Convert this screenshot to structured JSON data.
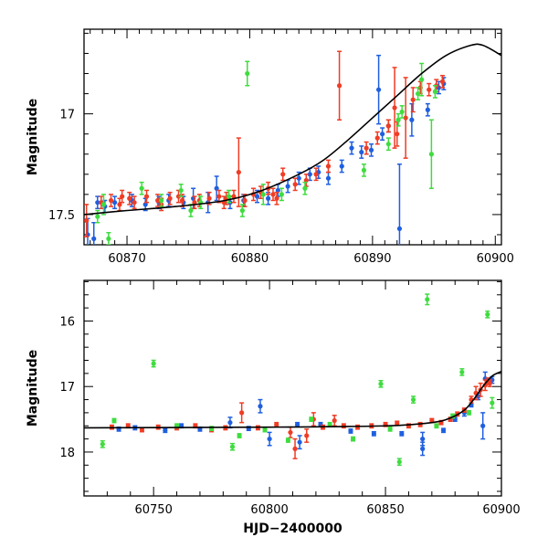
{
  "colors": {
    "blue": "#1f5fe0",
    "red": "#f03c24",
    "green": "#3fdc3f",
    "model": "#000000"
  },
  "chart_data": [
    {
      "type": "scatter",
      "title": "",
      "xlabel": "",
      "ylabel": "Magnitude",
      "xlim": [
        60866.5,
        60900.5
      ],
      "ylim": [
        17.65,
        16.58
      ],
      "y_inverted": true,
      "grid": false,
      "xticks": [
        60870,
        60880,
        60890,
        60900
      ],
      "yticks": [
        17,
        17.5
      ],
      "ytick_labels": [
        "17",
        "17.5"
      ],
      "model_curve": {
        "x": [
          60866.5,
          60870,
          60874,
          60878,
          60881,
          60884,
          60886,
          60888,
          60890,
          60892,
          60894,
          60896,
          60898,
          60899,
          60900.5
        ],
        "y": [
          17.5,
          17.48,
          17.46,
          17.43,
          17.38,
          17.3,
          17.23,
          17.13,
          17.02,
          16.91,
          16.8,
          16.71,
          16.66,
          16.66,
          16.71
        ]
      },
      "series": [
        {
          "color_key": "blue",
          "points": [
            [
              60866.8,
              17.6,
              0.08
            ],
            [
              60867.3,
              17.62,
              0.08
            ],
            [
              60867.6,
              17.44,
              0.03
            ],
            [
              60868.2,
              17.46,
              0.03
            ],
            [
              60869.0,
              17.44,
              0.03
            ],
            [
              60870.4,
              17.43,
              0.03
            ],
            [
              60871.5,
              17.45,
              0.03
            ],
            [
              60872.6,
              17.44,
              0.03
            ],
            [
              60873.4,
              17.43,
              0.03
            ],
            [
              60874.6,
              17.44,
              0.03
            ],
            [
              60875.4,
              17.42,
              0.05
            ],
            [
              60876.6,
              17.44,
              0.05
            ],
            [
              60877.3,
              17.37,
              0.06
            ],
            [
              60878.4,
              17.44,
              0.03
            ],
            [
              60879.5,
              17.43,
              0.03
            ],
            [
              60880.6,
              17.41,
              0.03
            ],
            [
              60881.5,
              17.42,
              0.03
            ],
            [
              60882.3,
              17.38,
              0.03
            ],
            [
              60883.1,
              17.36,
              0.03
            ],
            [
              60884.0,
              17.32,
              0.03
            ],
            [
              60884.9,
              17.3,
              0.03
            ],
            [
              60885.6,
              17.29,
              0.03
            ],
            [
              60886.4,
              17.32,
              0.03
            ],
            [
              60887.5,
              17.26,
              0.03
            ],
            [
              60888.3,
              17.17,
              0.03
            ],
            [
              60889.1,
              17.19,
              0.03
            ],
            [
              60889.9,
              17.18,
              0.03
            ],
            [
              60890.8,
              17.1,
              0.03
            ],
            [
              60891.3,
              17.06,
              0.03
            ],
            [
              60890.5,
              16.88,
              0.17
            ],
            [
              60892.2,
              17.57,
              0.32
            ],
            [
              60893.2,
              17.03,
              0.08
            ],
            [
              60894.5,
              16.98,
              0.03
            ],
            [
              60895.4,
              16.87,
              0.03
            ],
            [
              60895.8,
              16.85,
              0.03
            ]
          ]
        },
        {
          "color_key": "red",
          "points": [
            [
              60866.7,
              17.53,
              0.08
            ],
            [
              60867.9,
              17.44,
              0.03
            ],
            [
              60868.7,
              17.43,
              0.03
            ],
            [
              60869.6,
              17.41,
              0.03
            ],
            [
              60870.6,
              17.44,
              0.03
            ],
            [
              60871.6,
              17.41,
              0.03
            ],
            [
              60872.5,
              17.43,
              0.03
            ],
            [
              60873.5,
              17.42,
              0.03
            ],
            [
              60874.5,
              17.43,
              0.03
            ],
            [
              60875.5,
              17.44,
              0.03
            ],
            [
              60876.7,
              17.42,
              0.03
            ],
            [
              60877.5,
              17.41,
              0.03
            ],
            [
              60878.1,
              17.42,
              0.03
            ],
            [
              60878.7,
              17.41,
              0.03
            ],
            [
              60879.1,
              17.29,
              0.17
            ],
            [
              60879.6,
              17.43,
              0.03
            ],
            [
              60880.3,
              17.4,
              0.03
            ],
            [
              60880.9,
              17.39,
              0.03
            ],
            [
              60881.5,
              17.37,
              0.03
            ],
            [
              60882.2,
              17.42,
              0.03
            ],
            [
              60882.7,
              17.3,
              0.03
            ],
            [
              60883.7,
              17.35,
              0.03
            ],
            [
              60884.6,
              17.33,
              0.03
            ],
            [
              60885.4,
              17.3,
              0.03
            ],
            [
              60886.4,
              17.26,
              0.03
            ],
            [
              60887.3,
              16.86,
              0.17
            ],
            [
              60889.5,
              17.17,
              0.03
            ],
            [
              60890.4,
              17.12,
              0.03
            ],
            [
              60891.3,
              17.06,
              0.03
            ],
            [
              60892.0,
              17.1,
              0.06
            ],
            [
              60891.8,
              16.97,
              0.2
            ],
            [
              60892.7,
              17.02,
              0.2
            ],
            [
              60893.3,
              16.93,
              0.06
            ],
            [
              60893.9,
              16.87,
              0.03
            ],
            [
              60894.6,
              16.88,
              0.03
            ],
            [
              60895.2,
              16.86,
              0.03
            ],
            [
              60895.7,
              16.84,
              0.03
            ],
            [
              60869.4,
              17.45,
              0.03
            ],
            [
              60870.2,
              17.42,
              0.03
            ],
            [
              60872.8,
              17.45,
              0.03
            ],
            [
              60874.2,
              17.41,
              0.03
            ],
            [
              60875.9,
              17.43,
              0.03
            ],
            [
              60877.9,
              17.44,
              0.03
            ],
            [
              60881.9,
              17.4,
              0.03
            ]
          ]
        },
        {
          "color_key": "green",
          "points": [
            [
              60867.6,
              17.51,
              0.03
            ],
            [
              60868.1,
              17.45,
              0.05
            ],
            [
              60868.5,
              17.62,
              0.03
            ],
            [
              60871.2,
              17.37,
              0.03
            ],
            [
              60872.8,
              17.43,
              0.03
            ],
            [
              60874.4,
              17.38,
              0.03
            ],
            [
              60875.2,
              17.48,
              0.03
            ],
            [
              60876.0,
              17.44,
              0.03
            ],
            [
              60878.3,
              17.41,
              0.03
            ],
            [
              60879.4,
              17.48,
              0.03
            ],
            [
              60879.8,
              16.8,
              0.06
            ],
            [
              60881.1,
              17.4,
              0.05
            ],
            [
              60882.6,
              17.4,
              0.03
            ],
            [
              60884.5,
              17.37,
              0.03
            ],
            [
              60889.3,
              17.28,
              0.03
            ],
            [
              60891.3,
              17.15,
              0.03
            ],
            [
              60892.1,
              17.03,
              0.03
            ],
            [
              60892.4,
              16.99,
              0.03
            ],
            [
              60893.7,
              16.9,
              0.03
            ],
            [
              60894.0,
              16.83,
              0.08
            ],
            [
              60894.8,
              17.2,
              0.17
            ],
            [
              60895.1,
              16.89,
              0.03
            ]
          ]
        }
      ]
    },
    {
      "type": "scatter",
      "title": "",
      "xlabel": "HJD−2400000",
      "ylabel": "Magnitude",
      "xlim": [
        60720,
        60900
      ],
      "ylim": [
        18.67,
        15.38
      ],
      "y_inverted": true,
      "grid": false,
      "xticks": [
        60750,
        60800,
        60850,
        60900
      ],
      "yticks": [
        16,
        17,
        18
      ],
      "ytick_labels": [
        "16",
        "17",
        "18"
      ],
      "model_curve": {
        "x": [
          60720,
          60800,
          60850,
          60870,
          60878,
          60884,
          60888,
          60892,
          60896,
          60900
        ],
        "y": [
          17.63,
          17.62,
          17.6,
          17.55,
          17.48,
          17.36,
          17.2,
          17.0,
          16.84,
          16.77
        ]
      },
      "series": [
        {
          "color_key": "blue",
          "points": [
            [
              60735,
              17.65,
              0.03
            ],
            [
              60742,
              17.63,
              0.03
            ],
            [
              60755,
              17.67,
              0.03
            ],
            [
              60762,
              17.6,
              0.03
            ],
            [
              60770,
              17.65,
              0.03
            ],
            [
              60783,
              17.55,
              0.08
            ],
            [
              60791,
              17.64,
              0.03
            ],
            [
              60796,
              17.3,
              0.1
            ],
            [
              60800,
              17.8,
              0.1
            ],
            [
              60812,
              17.58,
              0.03
            ],
            [
              60822,
              17.58,
              0.03
            ],
            [
              60835,
              17.68,
              0.03
            ],
            [
              60845,
              17.72,
              0.03
            ],
            [
              60857,
              17.72,
              0.03
            ],
            [
              60866,
              17.8,
              0.1
            ],
            [
              60875,
              17.67,
              0.03
            ],
            [
              60880,
              17.5,
              0.03
            ],
            [
              60884,
              17.4,
              0.05
            ],
            [
              60887,
              17.28,
              0.03
            ],
            [
              60890,
              17.15,
              0.05
            ],
            [
              60892,
              17.6,
              0.2
            ],
            [
              60893,
              16.88,
              0.1
            ],
            [
              60896,
              16.9,
              0.05
            ],
            [
              60866,
              17.95,
              0.1
            ],
            [
              60813,
              17.85,
              0.1
            ]
          ]
        },
        {
          "color_key": "red",
          "points": [
            [
              60732,
              17.62,
              0.03
            ],
            [
              60739,
              17.6,
              0.03
            ],
            [
              60745,
              17.66,
              0.03
            ],
            [
              60752,
              17.62,
              0.03
            ],
            [
              60760,
              17.63,
              0.03
            ],
            [
              60768,
              17.6,
              0.03
            ],
            [
              60775,
              17.66,
              0.03
            ],
            [
              60781,
              17.63,
              0.03
            ],
            [
              60788,
              17.4,
              0.15
            ],
            [
              60795,
              17.63,
              0.03
            ],
            [
              60803,
              17.58,
              0.03
            ],
            [
              60809,
              17.7,
              0.08
            ],
            [
              60811,
              17.95,
              0.15
            ],
            [
              60816,
              17.75,
              0.1
            ],
            [
              60819,
              17.5,
              0.1
            ],
            [
              60823,
              17.62,
              0.03
            ],
            [
              60828,
              17.52,
              0.08
            ],
            [
              60832,
              17.6,
              0.03
            ],
            [
              60838,
              17.62,
              0.03
            ],
            [
              60844,
              17.6,
              0.03
            ],
            [
              60850,
              17.58,
              0.03
            ],
            [
              60855,
              17.56,
              0.03
            ],
            [
              60860,
              17.6,
              0.03
            ],
            [
              60865,
              17.58,
              0.03
            ],
            [
              60870,
              17.52,
              0.03
            ],
            [
              60874,
              17.55,
              0.03
            ],
            [
              60878,
              17.5,
              0.03
            ],
            [
              60881,
              17.42,
              0.03
            ],
            [
              60884,
              17.36,
              0.03
            ],
            [
              60887,
              17.2,
              0.05
            ],
            [
              60889,
              17.1,
              0.1
            ],
            [
              60891,
              17.05,
              0.1
            ],
            [
              60893,
              16.98,
              0.08
            ],
            [
              60894,
              16.92,
              0.05
            ],
            [
              60895,
              16.95,
              0.05
            ]
          ]
        },
        {
          "color_key": "green",
          "points": [
            [
              60728,
              17.88,
              0.05
            ],
            [
              60733,
              17.52,
              0.03
            ],
            [
              60750,
              16.65,
              0.05
            ],
            [
              60760,
              17.6,
              0.03
            ],
            [
              60775,
              17.64,
              0.03
            ],
            [
              60784,
              17.92,
              0.05
            ],
            [
              60787,
              17.75,
              0.03
            ],
            [
              60798,
              17.66,
              0.03
            ],
            [
              60808,
              17.82,
              0.03
            ],
            [
              60818,
              17.5,
              0.03
            ],
            [
              60826,
              17.58,
              0.03
            ],
            [
              60836,
              17.8,
              0.03
            ],
            [
              60848,
              16.96,
              0.05
            ],
            [
              60852,
              17.65,
              0.03
            ],
            [
              60856,
              18.15,
              0.05
            ],
            [
              60862,
              17.2,
              0.05
            ],
            [
              60868,
              15.67,
              0.08
            ],
            [
              60872,
              17.6,
              0.03
            ],
            [
              60879,
              17.45,
              0.03
            ],
            [
              60883,
              16.78,
              0.05
            ],
            [
              60886,
              17.4,
              0.03
            ],
            [
              60894,
              15.9,
              0.05
            ],
            [
              60896,
              17.25,
              0.08
            ]
          ]
        }
      ]
    }
  ]
}
